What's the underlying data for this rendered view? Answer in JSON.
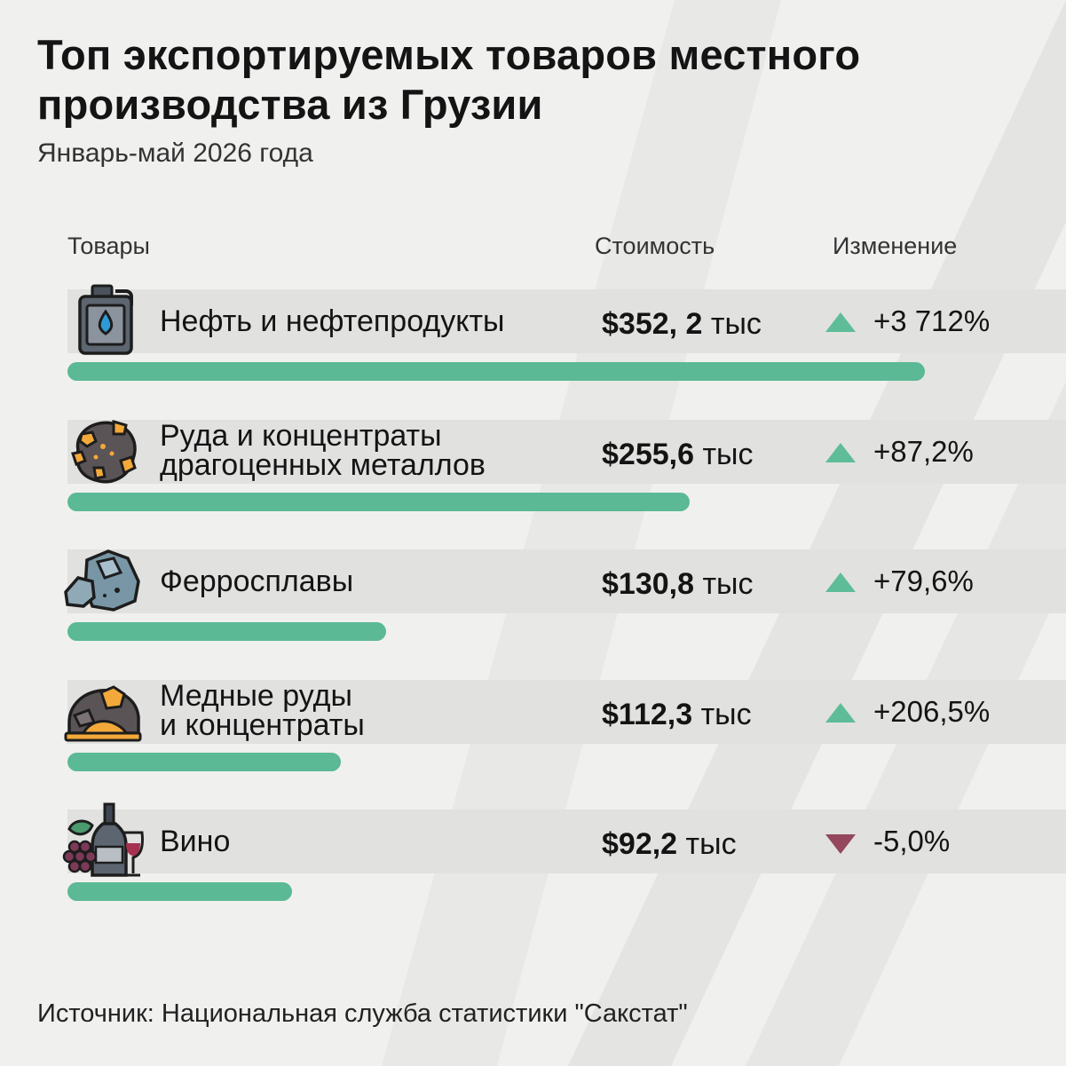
{
  "title": "Топ экспортируемых товаров местного производства из Грузии",
  "subtitle": "Январь-май 2026 года",
  "columns": {
    "goods": "Товары",
    "value": "Стоимость",
    "change": "Изменение"
  },
  "source": "Источник: Национальная служба статистики \"Сакстат\"",
  "colors": {
    "bar": "#5bb995",
    "up": "#5ebd98",
    "down": "#94475d",
    "band": "#e1e1e0"
  },
  "chart_data": {
    "type": "bar",
    "title": "Топ экспортируемых товаров местного производства из Грузии",
    "subtitle": "Январь-май 2026 года",
    "unit": "тыс",
    "xlabel": "",
    "ylabel": "",
    "categories": [
      "Нефть и нефтепродукты",
      "Руда и концентраты драгоценных металлов",
      "Ферросплавы",
      "Медные руды и концентраты",
      "Вино"
    ],
    "values": [
      352.2,
      255.6,
      130.8,
      112.3,
      92.2
    ],
    "xlim": [
      0,
      352.2
    ],
    "rows": [
      {
        "label_lines": [
          "Нефть и нефтепродукты"
        ],
        "icon": "oil-canister-icon",
        "value": 352.2,
        "currency": "$",
        "value_text": "352, 2",
        "unit": "тыс",
        "change": "+3 712%",
        "direction": "up"
      },
      {
        "label_lines": [
          "Руда и концентраты",
          "драгоценных металлов"
        ],
        "icon": "gold-ore-icon",
        "value": 255.6,
        "currency": "$",
        "value_text": "255,6",
        "unit": "тыс",
        "change": "+87,2%",
        "direction": "up"
      },
      {
        "label_lines": [
          "Ферросплавы"
        ],
        "icon": "ferroalloy-rocks-icon",
        "value": 130.8,
        "currency": "$",
        "value_text": "130,8",
        "unit": "тыс",
        "change": "+79,6%",
        "direction": "up"
      },
      {
        "label_lines": [
          "Медные руды",
          "и концентраты"
        ],
        "icon": "copper-ore-icon",
        "value": 112.3,
        "currency": "$",
        "value_text": "112,3",
        "unit": "тыс",
        "change": "+206,5%",
        "direction": "up"
      },
      {
        "label_lines": [
          "Вино"
        ],
        "icon": "wine-bottle-icon",
        "value": 92.2,
        "currency": "$",
        "value_text": "92,2",
        "unit": "тыс",
        "change": "-5,0%",
        "direction": "down"
      }
    ]
  }
}
